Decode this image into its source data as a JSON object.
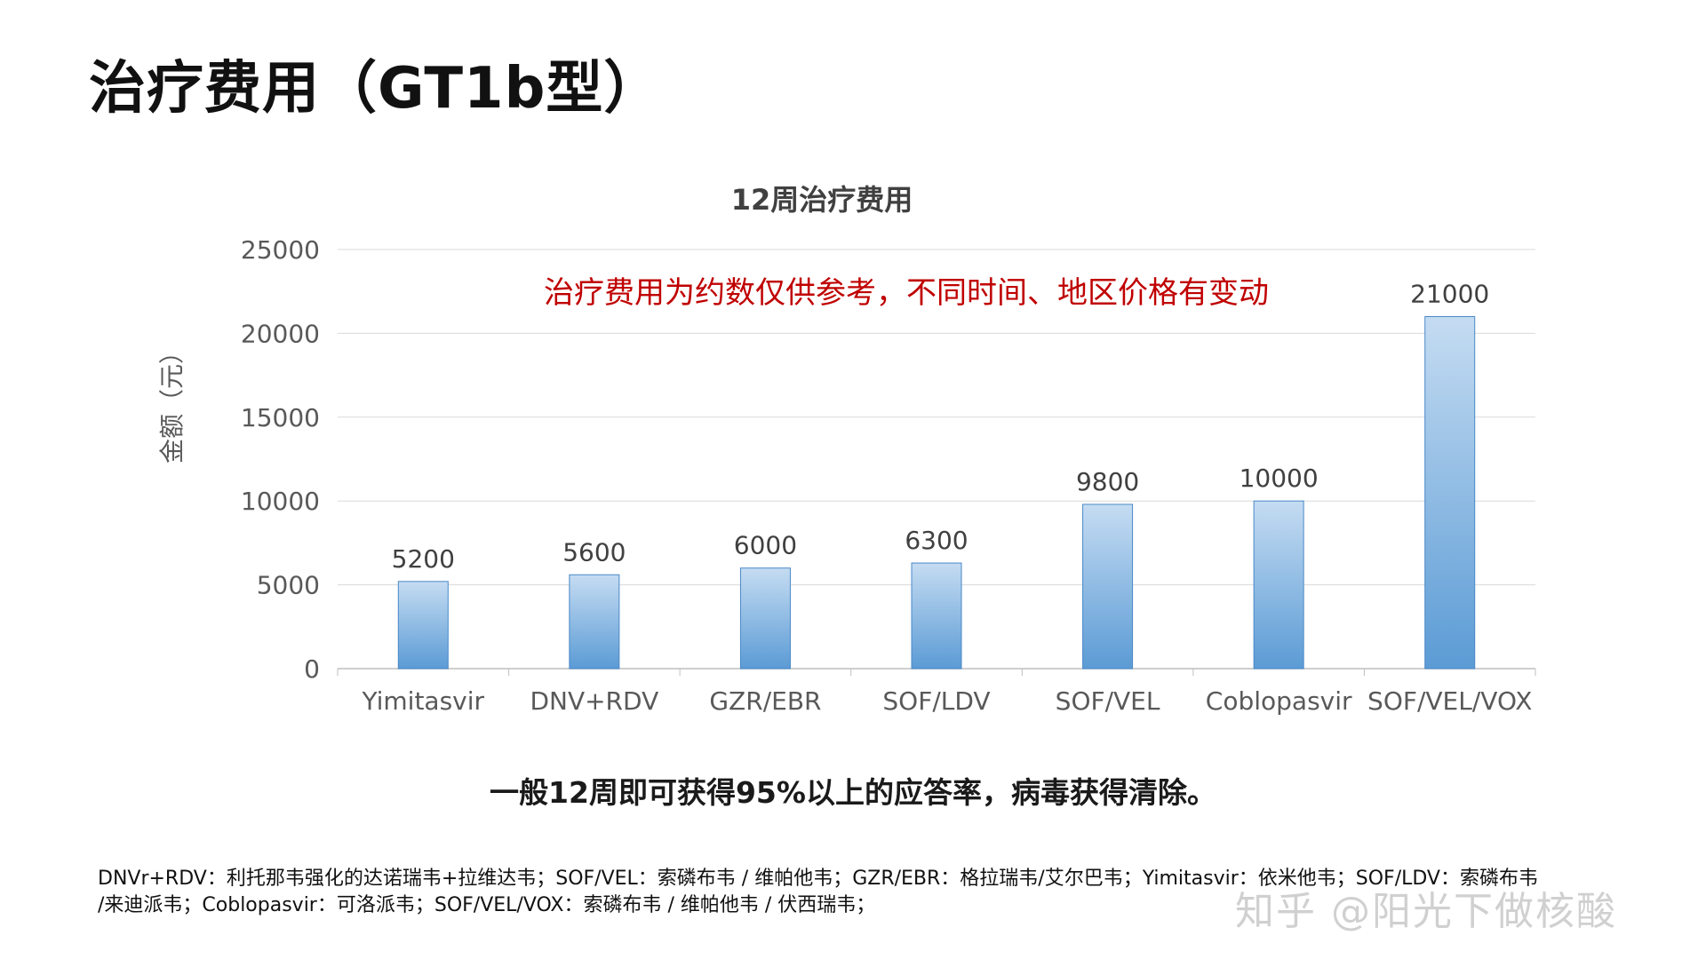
{
  "slide": {
    "title": "治疗费用（GT1b型）",
    "caption": "一般12周即可获得95%以上的应答率，病毒获得清除。",
    "footnote_lines": [
      "DNVr+RDV：利托那韦强化的达诺瑞韦+拉维达韦；SOF/VEL：索磷布韦 / 维帕他韦；GZR/EBR：格拉瑞韦/艾尔巴韦；Yimitasvir：依米他韦；SOF/LDV：索磷布韦",
      "/来迪派韦；Coblopasvir：可洛派韦；SOF/VEL/VOX：索磷布韦 / 维帕他韦 / 伏西瑞韦；"
    ],
    "watermark": "知乎 @阳光下做核酸"
  },
  "chart_data": {
    "type": "bar",
    "title": "12周治疗费用",
    "annotation": "治疗费用为约数仅供参考，不同时间、地区价格有变动",
    "xlabel": "",
    "ylabel": "金额（元）",
    "categories": [
      "Yimitasvir",
      "DNV+RDV",
      "GZR/EBR",
      "SOF/LDV",
      "SOF/VEL",
      "Coblopasvir",
      "SOF/VEL/VOX"
    ],
    "values": [
      5200,
      5600,
      6000,
      6300,
      9800,
      10000,
      21000
    ],
    "data_labels": [
      "5200",
      "5600",
      "6000",
      "6300",
      "9800",
      "10000",
      "21000"
    ],
    "ylim": [
      0,
      25000
    ],
    "yticks": [
      0,
      5000,
      10000,
      15000,
      20000,
      25000
    ],
    "ytick_labels": [
      "0",
      "5000",
      "10000",
      "15000",
      "20000",
      "25000"
    ],
    "grid": true,
    "legend": "none",
    "colors": {
      "bar_top": "#c5dcf2",
      "bar_bottom": "#5b9bd5",
      "bar_edge": "#4a88c7",
      "annotation": "#c00000",
      "axis_text": "#595959",
      "title_text": "#404040",
      "grid": "#d9d9d9"
    }
  }
}
